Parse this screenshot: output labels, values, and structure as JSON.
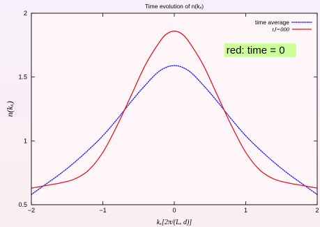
{
  "chart_data": {
    "type": "line",
    "title": "Time evolution of n(kₓ)",
    "xlabel": "kₓ[2π/(Lₓ d)]",
    "ylabel": "n(kₓ)",
    "xlim": [
      -2,
      2
    ],
    "ylim": [
      0.5,
      2
    ],
    "xticks": [
      -2,
      -1,
      0,
      1,
      2
    ],
    "xtick_labels": [
      "−2",
      "−1",
      "0",
      "1",
      "2"
    ],
    "yticks": [
      0.5,
      1,
      1.5,
      2
    ],
    "ytick_labels": [
      "0.5",
      "1",
      "1.5",
      "2"
    ],
    "grid": false,
    "legend_position": "top-right",
    "series": [
      {
        "name": "time average",
        "style": "dotted",
        "color": "#1a1aff",
        "x": [
          -2,
          -1.8,
          -1.6,
          -1.4,
          -1.2,
          -1.0,
          -0.8,
          -0.6,
          -0.4,
          -0.2,
          0,
          0.2,
          0.4,
          0.6,
          0.8,
          1.0,
          1.2,
          1.4,
          1.6,
          1.8,
          2
        ],
        "y": [
          0.58,
          0.66,
          0.74,
          0.83,
          0.93,
          1.04,
          1.17,
          1.31,
          1.44,
          1.55,
          1.59,
          1.55,
          1.44,
          1.31,
          1.17,
          1.04,
          0.93,
          0.83,
          0.74,
          0.66,
          0.58
        ]
      },
      {
        "name": "tJ=000",
        "style": "solid",
        "color": "#e8141c",
        "x": [
          -2,
          -1.8,
          -1.6,
          -1.4,
          -1.2,
          -1.0,
          -0.8,
          -0.6,
          -0.4,
          -0.2,
          -0.1,
          0,
          0.1,
          0.2,
          0.4,
          0.6,
          0.8,
          1.0,
          1.2,
          1.4,
          1.6,
          1.8,
          2
        ],
        "y": [
          0.63,
          0.65,
          0.67,
          0.7,
          0.77,
          0.91,
          1.12,
          1.36,
          1.6,
          1.78,
          1.84,
          1.86,
          1.84,
          1.78,
          1.6,
          1.36,
          1.12,
          0.91,
          0.77,
          0.7,
          0.67,
          0.65,
          0.63
        ]
      }
    ],
    "annotations": [
      {
        "text": "red: time = 0",
        "x": 0.7,
        "y": 1.71,
        "background": "#ccff99"
      }
    ]
  }
}
